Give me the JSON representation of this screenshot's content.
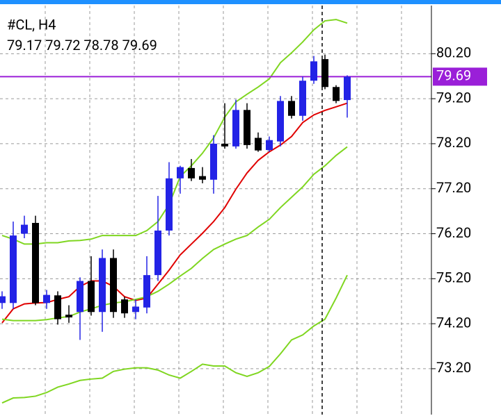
{
  "chart_data": {
    "type": "candlestick",
    "title": "#CL, H4",
    "last_bar": {
      "open": 79.17,
      "high": 79.72,
      "low": 78.78,
      "close": 79.69
    },
    "open": [
      74.66,
      74.66,
      76.2,
      76.44,
      74.66,
      74.83,
      74.4,
      74.46,
      75.15,
      74.46,
      75.66,
      74.74,
      74.46,
      74.56,
      75.28,
      76.27,
      77.43,
      77.66,
      77.48,
      77.4,
      78.2,
      78.14,
      78.95,
      78.33,
      78.06,
      78.25,
      79.15,
      78.82,
      79.6,
      80.08,
      79.46,
      79.17
    ],
    "high": [
      74.92,
      76.47,
      76.6,
      76.6,
      74.95,
      74.92,
      74.61,
      75.23,
      75.7,
      75.85,
      75.85,
      74.8,
      74.74,
      75.7,
      77.04,
      77.79,
      77.71,
      77.86,
      77.68,
      78.39,
      79.1,
      79.18,
      79.1,
      78.45,
      78.36,
      79.26,
      79.26,
      79.69,
      80.15,
      80.18,
      79.5,
      79.72
    ],
    "low": [
      74.53,
      74.53,
      76.1,
      74.61,
      74.53,
      74.18,
      74.22,
      73.84,
      74.38,
      74.02,
      74.33,
      74.33,
      74.3,
      74.43,
      75.15,
      76.16,
      77.09,
      77.37,
      77.32,
      77.09,
      78.09,
      78.09,
      78.09,
      78.02,
      78.02,
      78.14,
      78.76,
      78.71,
      79.53,
      79.41,
      79.1,
      78.78
    ],
    "close": [
      74.81,
      76.16,
      76.4,
      74.66,
      74.84,
      74.3,
      74.34,
      75.15,
      74.46,
      75.66,
      74.46,
      74.43,
      74.58,
      75.28,
      76.27,
      77.43,
      77.68,
      77.43,
      77.4,
      78.2,
      78.14,
      78.95,
      78.17,
      78.05,
      78.28,
      79.15,
      78.82,
      79.6,
      80.03,
      79.46,
      79.15,
      79.69
    ],
    "bull_color": "#2323e6",
    "bear_color": "#000000",
    "lines": [
      {
        "color": "#7fd620",
        "values": [
          76.16,
          76.08,
          75.97,
          75.97,
          76.0,
          76.0,
          76.04,
          76.05,
          76.08,
          76.16,
          76.16,
          76.16,
          76.16,
          76.27,
          76.47,
          76.85,
          77.47,
          77.71,
          77.99,
          78.33,
          78.79,
          79.13,
          79.3,
          79.46,
          79.64,
          80.0,
          80.22,
          80.46,
          80.73,
          80.93,
          80.96,
          80.88
        ]
      },
      {
        "color": "#e00000",
        "values": [
          74.22,
          74.53,
          74.64,
          74.66,
          74.67,
          74.74,
          74.8,
          75.03,
          75.15,
          75.15,
          75.03,
          74.8,
          74.72,
          74.77,
          75.08,
          75.39,
          75.73,
          75.97,
          76.21,
          76.47,
          76.78,
          77.19,
          77.55,
          77.83,
          78.02,
          78.17,
          78.36,
          78.67,
          78.84,
          78.94,
          79.02,
          79.1
        ]
      },
      {
        "color": "#7fd620",
        "values": [
          74.3,
          74.27,
          74.27,
          74.27,
          74.29,
          74.33,
          74.36,
          74.46,
          74.53,
          74.61,
          74.66,
          74.69,
          74.74,
          74.8,
          74.92,
          75.08,
          75.26,
          75.43,
          75.65,
          75.85,
          75.97,
          76.08,
          76.16,
          76.35,
          76.52,
          76.78,
          77.01,
          77.24,
          77.52,
          77.71,
          77.94,
          78.13
        ]
      },
      {
        "color": "#7fd620",
        "values": [
          72.44,
          72.55,
          72.56,
          72.59,
          72.67,
          72.79,
          72.86,
          72.94,
          72.97,
          72.99,
          73.14,
          73.19,
          73.22,
          73.22,
          73.17,
          73.06,
          72.99,
          73.14,
          73.3,
          73.26,
          73.26,
          73.11,
          73.03,
          73.11,
          73.25,
          73.53,
          73.84,
          73.95,
          74.15,
          74.3,
          74.77,
          75.28
        ]
      }
    ],
    "current_price": {
      "value": 79.69,
      "label": "79.69",
      "color": "#9a1fd8"
    },
    "ylim": [
      72.18,
      81.27
    ],
    "yticks": [
      {
        "value": 73.2,
        "label": "73.20"
      },
      {
        "value": 74.2,
        "label": "74.20"
      },
      {
        "value": 75.2,
        "label": "75.20"
      },
      {
        "value": 76.2,
        "label": "76.20"
      },
      {
        "value": 77.2,
        "label": "77.20"
      },
      {
        "value": 78.2,
        "label": "78.20"
      },
      {
        "value": 79.2,
        "label": "79.20"
      },
      {
        "value": 80.2,
        "label": "80.20"
      }
    ],
    "grid": true
  }
}
